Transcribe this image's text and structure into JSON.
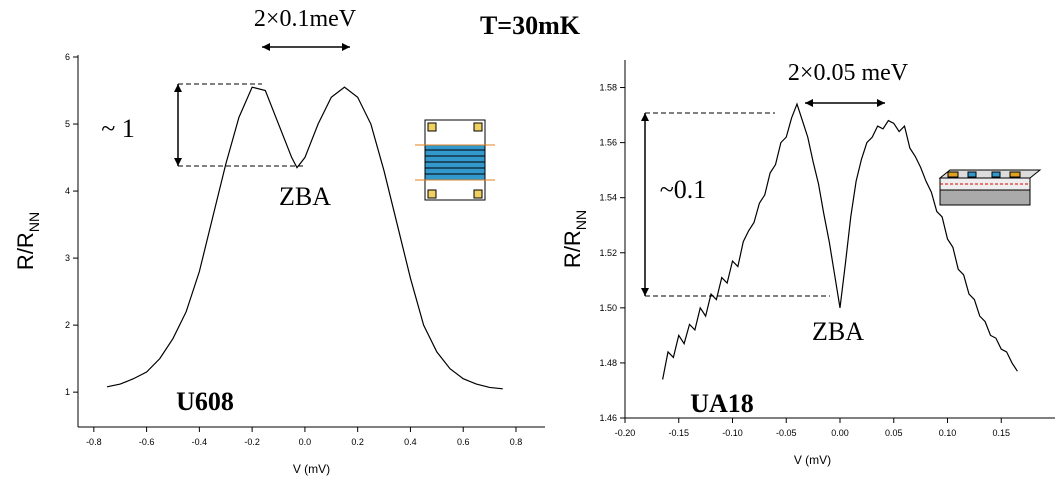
{
  "title": "T=30mK",
  "chart_data": [
    {
      "type": "line",
      "x_label": "V (mV)",
      "y_label": "R/R",
      "y_label_sub": "NN",
      "annotations": {
        "width": "2×0.1meV",
        "height": "~ 1",
        "feature": "ZBA",
        "sample": "U608"
      },
      "color": "#000000",
      "xlim": [
        -0.86,
        0.91
      ],
      "ylim": [
        0.48,
        6.03
      ],
      "xticks": [
        -0.8,
        -0.6,
        -0.4,
        -0.2,
        {
          "value": 0,
          "label": "0.0"
        },
        0.2,
        0.4,
        0.6,
        0.8
      ],
      "yticks": [
        1,
        2,
        3,
        4,
        5,
        6
      ],
      "x": [
        -0.75,
        -0.7,
        -0.65,
        -0.6,
        -0.55,
        -0.5,
        -0.45,
        -0.4,
        -0.35,
        -0.3,
        -0.25,
        -0.2,
        -0.15,
        -0.1,
        -0.05,
        -0.03,
        0,
        0.05,
        0.1,
        0.15,
        0.2,
        0.25,
        0.3,
        0.35,
        0.4,
        0.45,
        0.5,
        0.55,
        0.6,
        0.65,
        0.7,
        0.75
      ],
      "values": [
        1.08,
        1.12,
        1.2,
        1.3,
        1.5,
        1.8,
        2.2,
        2.8,
        3.6,
        4.4,
        5.1,
        5.55,
        5.5,
        5.0,
        4.5,
        4.35,
        4.5,
        5.0,
        5.4,
        5.55,
        5.4,
        5.0,
        4.3,
        3.5,
        2.7,
        2.0,
        1.6,
        1.35,
        1.2,
        1.12,
        1.07,
        1.05
      ]
    },
    {
      "type": "line",
      "x_label": "V (mV)",
      "y_label": "R/R",
      "y_label_sub": "NN",
      "annotations": {
        "width": "2×0.05 meV",
        "height": "~0.1",
        "feature": "ZBA",
        "sample": "UA18"
      },
      "color": "#000000",
      "xlim": [
        -0.2,
        0.2
      ],
      "ylim": [
        1.46,
        1.59
      ],
      "xticks": [
        {
          "value": -0.2,
          "label": "-0.20"
        },
        {
          "value": -0.15,
          "label": "-0.15"
        },
        {
          "value": -0.1,
          "label": "-0.10"
        },
        {
          "value": -0.05,
          "label": "-0.05"
        },
        {
          "value": 0,
          "label": "0.00"
        },
        {
          "value": 0.05,
          "label": "0.05"
        },
        {
          "value": 0.1,
          "label": "0.10"
        },
        {
          "value": 0.15,
          "label": "0.15"
        }
      ],
      "yticks": [
        1.46,
        1.48,
        {
          "value": 1.5,
          "label": "1.50"
        },
        1.52,
        1.54,
        1.56,
        1.58
      ],
      "x": [
        -0.165,
        -0.16,
        -0.155,
        -0.15,
        -0.145,
        -0.14,
        -0.135,
        -0.13,
        -0.125,
        -0.12,
        -0.115,
        -0.11,
        -0.105,
        -0.1,
        -0.095,
        -0.09,
        -0.085,
        -0.08,
        -0.075,
        -0.07,
        -0.065,
        -0.06,
        -0.055,
        -0.05,
        -0.045,
        -0.04,
        -0.035,
        -0.03,
        -0.025,
        -0.02,
        -0.015,
        -0.01,
        -0.005,
        0,
        0.005,
        0.01,
        0.015,
        0.02,
        0.025,
        0.03,
        0.035,
        0.04,
        0.045,
        0.05,
        0.055,
        0.06,
        0.065,
        0.07,
        0.075,
        0.08,
        0.085,
        0.09,
        0.095,
        0.1,
        0.105,
        0.11,
        0.115,
        0.12,
        0.125,
        0.13,
        0.135,
        0.14,
        0.145,
        0.15,
        0.155,
        0.16,
        0.165
      ],
      "values": [
        1.474,
        1.484,
        1.482,
        1.49,
        1.487,
        1.494,
        1.492,
        1.5,
        1.497,
        1.505,
        1.503,
        1.511,
        1.509,
        1.517,
        1.515,
        1.524,
        1.528,
        1.531,
        1.538,
        1.541,
        1.549,
        1.552,
        1.56,
        1.562,
        1.569,
        1.574,
        1.568,
        1.562,
        1.553,
        1.545,
        1.534,
        1.524,
        1.512,
        1.5,
        1.516,
        1.533,
        1.546,
        1.554,
        1.56,
        1.562,
        1.566,
        1.565,
        1.568,
        1.567,
        1.564,
        1.566,
        1.558,
        1.555,
        1.551,
        1.546,
        1.542,
        1.535,
        1.533,
        1.525,
        1.522,
        1.514,
        1.512,
        1.505,
        1.503,
        1.497,
        1.495,
        1.49,
        1.489,
        1.485,
        1.484,
        1.48,
        1.477
      ]
    }
  ]
}
